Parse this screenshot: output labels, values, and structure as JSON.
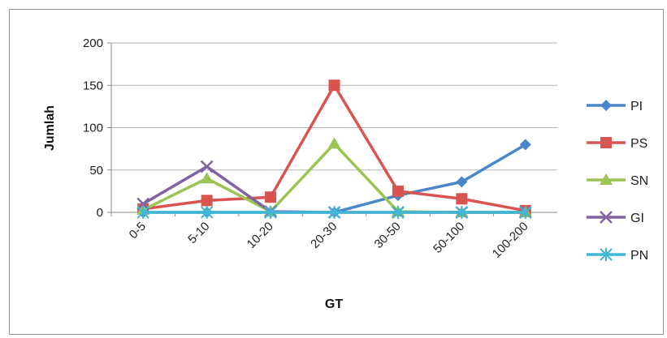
{
  "chart_data": {
    "type": "line",
    "categories": [
      "0-5",
      "5-10",
      "10-20",
      "20-30",
      "30-50",
      "50-100",
      "100-200"
    ],
    "xlabel": "GT",
    "ylabel": "Jumlah",
    "ylim": [
      0,
      200
    ],
    "yticks": [
      0,
      50,
      100,
      150,
      200
    ],
    "grid": true,
    "legend": "right",
    "series": [
      {
        "name": "PI",
        "color": "#4a86c8",
        "marker": "diamond",
        "values": [
          0,
          0,
          0,
          0,
          20,
          36,
          80
        ]
      },
      {
        "name": "PS",
        "color": "#d9534f",
        "marker": "square",
        "values": [
          4,
          14,
          18,
          150,
          25,
          16,
          2
        ]
      },
      {
        "name": "SN",
        "color": "#9bc453",
        "marker": "triangle",
        "values": [
          3,
          40,
          1,
          81,
          1,
          0,
          0
        ]
      },
      {
        "name": "GI",
        "color": "#8064a2",
        "marker": "x",
        "values": [
          10,
          54,
          1,
          0,
          0,
          0,
          0
        ]
      },
      {
        "name": "PN",
        "color": "#3fb8d6",
        "marker": "star",
        "values": [
          0,
          0,
          0,
          0,
          0,
          0,
          0
        ]
      }
    ]
  }
}
